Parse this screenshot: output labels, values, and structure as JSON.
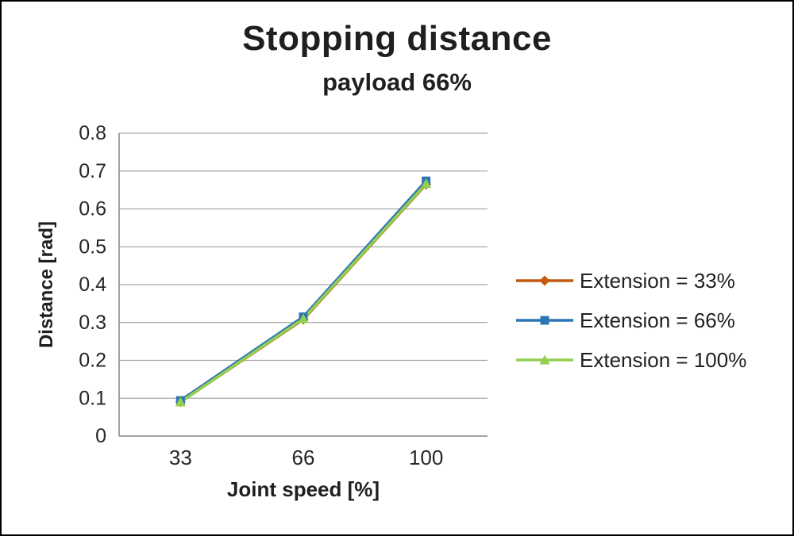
{
  "chart_data": {
    "type": "line",
    "title": "Stopping distance",
    "subtitle": "payload 66%",
    "xlabel": "Joint speed [%]",
    "ylabel": "Distance [rad]",
    "x_values": [
      33,
      66,
      100
    ],
    "x_tick_labels": [
      "33",
      "66",
      "100"
    ],
    "ylim": [
      0,
      0.8
    ],
    "y_tick_step": 0.1,
    "y_tick_labels": [
      "0",
      "0.1",
      "0.2",
      "0.3",
      "0.4",
      "0.5",
      "0.6",
      "0.7",
      "0.8"
    ],
    "grid": "horizontal",
    "legend_position": "right",
    "series": [
      {
        "name": "Extension = 33%",
        "marker": "diamond",
        "color": "#C45911",
        "values": [
          0.09,
          0.308,
          0.665
        ]
      },
      {
        "name": "Extension = 66%",
        "marker": "square",
        "color": "#2E75B6",
        "values": [
          0.094,
          0.315,
          0.674
        ]
      },
      {
        "name": "Extension = 100%",
        "marker": "triangle",
        "color": "#92D050",
        "values": [
          0.09,
          0.31,
          0.667
        ]
      }
    ],
    "colors": {
      "gridline": "#A6A6A6",
      "axis": "#8C8C8C",
      "text": "#262626",
      "title": "#1F1F1F",
      "background": "#FFFFFF",
      "frame_border": "#000000"
    }
  }
}
